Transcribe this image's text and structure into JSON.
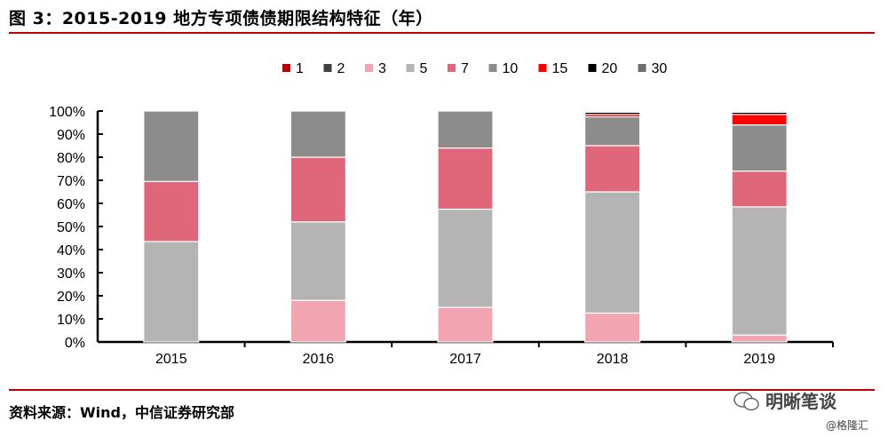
{
  "header": {
    "title": "图 3：2015-2019 地方专项债债期限结构特征（年）"
  },
  "footer": {
    "source": "资料来源：Wind，中信证券研究部"
  },
  "watermark": {
    "text": "明晰笔谈",
    "subtext": "@格隆汇"
  },
  "chart_data": {
    "type": "bar",
    "stacked": true,
    "categories": [
      "2015",
      "2016",
      "2017",
      "2018",
      "2019"
    ],
    "ylim": [
      0,
      100
    ],
    "yticks": [
      "0%",
      "10%",
      "20%",
      "30%",
      "40%",
      "50%",
      "60%",
      "70%",
      "80%",
      "90%",
      "100%"
    ],
    "legend_position": "top",
    "series": [
      {
        "name": "1",
        "color": "#c00000",
        "values": [
          0,
          0,
          0,
          0,
          0
        ]
      },
      {
        "name": "2",
        "color": "#404040",
        "values": [
          0,
          0,
          0,
          0,
          0
        ]
      },
      {
        "name": "3",
        "color": "#f2a5b0",
        "values": [
          0,
          18,
          15,
          12.5,
          3
        ]
      },
      {
        "name": "5",
        "color": "#b4b4b4",
        "values": [
          43.5,
          34,
          42.5,
          52.5,
          55.5
        ]
      },
      {
        "name": "7",
        "color": "#e0667a",
        "values": [
          26,
          28,
          26.5,
          20,
          15.5
        ]
      },
      {
        "name": "10",
        "color": "#8c8c8c",
        "values": [
          30.5,
          20,
          16,
          12.5,
          20
        ]
      },
      {
        "name": "15",
        "color": "#ff0000",
        "values": [
          0,
          0,
          0,
          1,
          4.5
        ]
      },
      {
        "name": "20",
        "color": "#000000",
        "values": [
          0,
          0,
          0,
          1,
          1
        ]
      },
      {
        "name": "30",
        "color": "#6e6e6e",
        "values": [
          0,
          0,
          0,
          0.5,
          0.5
        ]
      }
    ]
  }
}
